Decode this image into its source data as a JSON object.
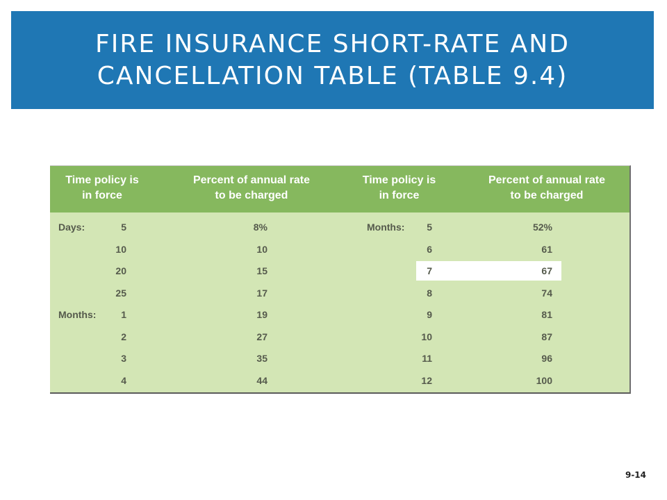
{
  "slide": {
    "title_line1": "FIRE INSURANCE SHORT-RATE AND",
    "title_line2": "CANCELLATION TABLE (TABLE 9.4)",
    "page_number": "9-14"
  },
  "colors": {
    "title_bar": "#1f77b4",
    "table_header": "#86b85e",
    "table_body": "#d3e6b5",
    "highlight_row": "#ffffff"
  },
  "table": {
    "headers": [
      {
        "line1": "Time policy is",
        "line2": "in force"
      },
      {
        "line1": "Percent of annual rate",
        "line2": "to be charged"
      },
      {
        "line1": "Time policy is",
        "line2": "in force"
      },
      {
        "line1": "Percent of annual rate",
        "line2": "to be charged"
      }
    ],
    "rows": [
      {
        "left_label": "Days:",
        "left_time": "5",
        "left_pct": "8%",
        "right_label": "Months:",
        "right_time": "5",
        "right_pct": "52%"
      },
      {
        "left_label": "",
        "left_time": "10",
        "left_pct": "10",
        "right_label": "",
        "right_time": "6",
        "right_pct": "61"
      },
      {
        "left_label": "",
        "left_time": "20",
        "left_pct": "15",
        "right_label": "",
        "right_time": "7",
        "right_pct": "67",
        "highlighted": true
      },
      {
        "left_label": "",
        "left_time": "25",
        "left_pct": "17",
        "right_label": "",
        "right_time": "8",
        "right_pct": "74"
      },
      {
        "left_label": "Months:",
        "left_time": "1",
        "left_pct": "19",
        "right_label": "",
        "right_time": "9",
        "right_pct": "81"
      },
      {
        "left_label": "",
        "left_time": "2",
        "left_pct": "27",
        "right_label": "",
        "right_time": "10",
        "right_pct": "87"
      },
      {
        "left_label": "",
        "left_time": "3",
        "left_pct": "35",
        "right_label": "",
        "right_time": "11",
        "right_pct": "96"
      },
      {
        "left_label": "",
        "left_time": "4",
        "left_pct": "44",
        "right_label": "",
        "right_time": "12",
        "right_pct": "100"
      }
    ]
  }
}
